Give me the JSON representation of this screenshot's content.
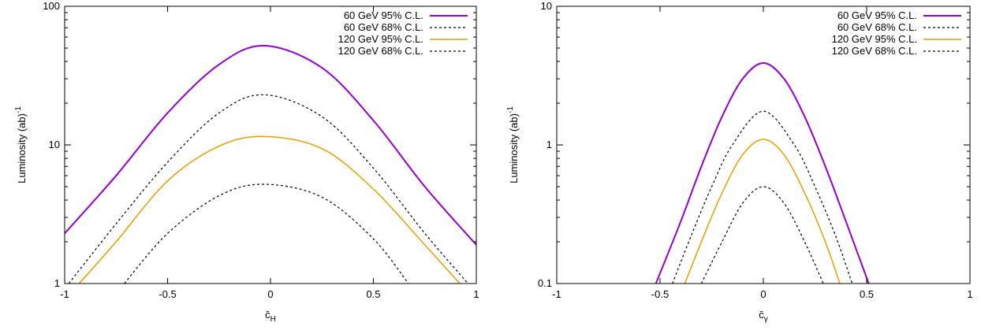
{
  "chart_data": [
    {
      "type": "line",
      "title": "",
      "xlabel_main": "c̄",
      "xlabel_sub": "H",
      "ylabel": "Luminosity (ab)",
      "ylabel_sup": "-1",
      "yscale": "log",
      "xlim": [
        -1,
        1
      ],
      "ylim": [
        1,
        100
      ],
      "x_ticks": [
        "-1",
        "-0.5",
        "0",
        "0.5",
        "1"
      ],
      "x_tick_values": [
        -1,
        -0.5,
        0,
        0.5,
        1
      ],
      "y_ticks": [
        "1",
        "10",
        "100"
      ],
      "y_tick_values": [
        1,
        10,
        100
      ],
      "grid": false,
      "legend_position": "top-right",
      "series": [
        {
          "name": "60 GeV 95% C.L.",
          "color": "#9400d3",
          "style": "solid",
          "x": [
            -1,
            -0.75,
            -0.5,
            -0.25,
            -0.03,
            0.25,
            0.5,
            0.75,
            1
          ],
          "y": [
            2.3,
            6.0,
            17.0,
            38.0,
            52.0,
            36.0,
            15.0,
            5.0,
            1.9
          ]
        },
        {
          "name": "60 GeV 68% C.L.",
          "color": "#000000",
          "style": "dashed",
          "x": [
            -0.98,
            -0.75,
            -0.5,
            -0.25,
            -0.03,
            0.25,
            0.5,
            0.75,
            0.96
          ],
          "y": [
            1.0,
            2.7,
            7.5,
            17.0,
            23.0,
            16.0,
            6.8,
            2.3,
            1.0
          ]
        },
        {
          "name": "120 GeV 95% C.L.",
          "color": "#e69f00",
          "style": "solid",
          "x": [
            -0.93,
            -0.75,
            -0.5,
            -0.25,
            -0.03,
            0.25,
            0.5,
            0.75,
            0.92
          ],
          "y": [
            1.0,
            2.0,
            5.5,
            9.8,
            11.5,
            9.4,
            4.8,
            1.9,
            1.0
          ]
        },
        {
          "name": "120 GeV 68% C.L.",
          "color": "#000000",
          "style": "dashed",
          "x": [
            -0.71,
            -0.5,
            -0.25,
            -0.03,
            0.25,
            0.5,
            0.67
          ],
          "y": [
            1.0,
            2.3,
            4.3,
            5.2,
            4.2,
            2.1,
            1.0
          ]
        }
      ]
    },
    {
      "type": "line",
      "title": "",
      "xlabel_main": "c̄",
      "xlabel_sub": "γ",
      "ylabel": "Luminosity (ab)",
      "ylabel_sup": "-1",
      "yscale": "log",
      "xlim": [
        -1,
        1
      ],
      "ylim": [
        0.1,
        10
      ],
      "x_ticks": [
        "-1",
        "-0.5",
        "0",
        "0.5",
        "1"
      ],
      "x_tick_values": [
        -1,
        -0.5,
        0,
        0.5,
        1
      ],
      "y_ticks": [
        "0.1",
        "1",
        "10"
      ],
      "y_tick_values": [
        0.1,
        1,
        10
      ],
      "grid": false,
      "legend_position": "top-right",
      "series": [
        {
          "name": "60 GeV 95% C.L.",
          "color": "#9400d3",
          "style": "solid",
          "x": [
            -0.52,
            -0.4,
            -0.3,
            -0.2,
            -0.1,
            0,
            0.1,
            0.2,
            0.3,
            0.4,
            0.51
          ],
          "y": [
            0.1,
            0.28,
            0.7,
            1.6,
            3.0,
            3.9,
            3.0,
            1.6,
            0.7,
            0.28,
            0.1
          ]
        },
        {
          "name": "60 GeV 68% C.L.",
          "color": "#000000",
          "style": "dashed",
          "x": [
            -0.44,
            -0.35,
            -0.25,
            -0.15,
            0,
            0.15,
            0.25,
            0.35,
            0.43
          ],
          "y": [
            0.1,
            0.22,
            0.5,
            1.0,
            1.75,
            1.0,
            0.5,
            0.22,
            0.1
          ]
        },
        {
          "name": "120 GeV 95% C.L.",
          "color": "#e69f00",
          "style": "solid",
          "x": [
            -0.38,
            -0.3,
            -0.2,
            -0.1,
            0,
            0.1,
            0.2,
            0.3,
            0.37
          ],
          "y": [
            0.1,
            0.2,
            0.45,
            0.85,
            1.1,
            0.85,
            0.45,
            0.2,
            0.1
          ]
        },
        {
          "name": "120 GeV 68% C.L.",
          "color": "#000000",
          "style": "dashed",
          "x": [
            -0.3,
            -0.2,
            -0.1,
            0,
            0.1,
            0.2,
            0.29
          ],
          "y": [
            0.1,
            0.2,
            0.38,
            0.5,
            0.38,
            0.2,
            0.1
          ]
        }
      ]
    }
  ]
}
